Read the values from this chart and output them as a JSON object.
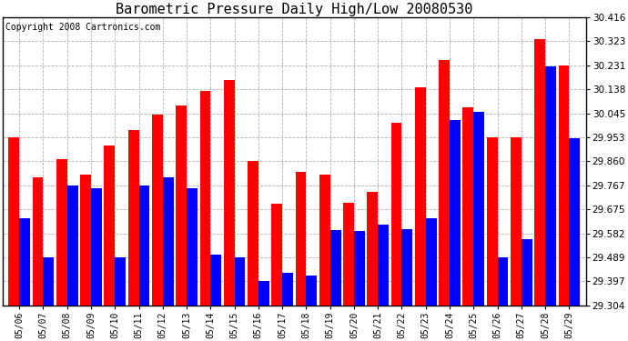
{
  "title": "Barometric Pressure Daily High/Low 20080530",
  "copyright": "Copyright 2008 Cartronics.com",
  "dates": [
    "05/06",
    "05/07",
    "05/08",
    "05/09",
    "05/10",
    "05/11",
    "05/12",
    "05/13",
    "05/14",
    "05/15",
    "05/16",
    "05/17",
    "05/18",
    "05/19",
    "05/20",
    "05/21",
    "05/22",
    "05/23",
    "05/24",
    "05/25",
    "05/26",
    "05/27",
    "05/28",
    "05/29"
  ],
  "highs": [
    29.953,
    29.8,
    29.87,
    29.81,
    29.92,
    29.98,
    30.04,
    30.075,
    30.13,
    30.175,
    29.86,
    29.695,
    29.82,
    29.81,
    29.7,
    29.743,
    30.01,
    30.145,
    30.25,
    30.07,
    29.953,
    29.953,
    30.33,
    30.23
  ],
  "lows": [
    29.64,
    29.49,
    29.767,
    29.755,
    29.49,
    29.767,
    29.8,
    29.757,
    29.5,
    29.49,
    29.397,
    29.43,
    29.42,
    29.595,
    29.59,
    29.615,
    29.597,
    29.64,
    30.02,
    30.05,
    29.49,
    29.56,
    30.225,
    29.95
  ],
  "ylim_min": 29.304,
  "ylim_max": 30.416,
  "yticks": [
    29.304,
    29.397,
    29.489,
    29.582,
    29.675,
    29.767,
    29.86,
    29.953,
    30.045,
    30.138,
    30.231,
    30.323,
    30.416
  ],
  "high_color": "#ff0000",
  "low_color": "#0000ff",
  "bg_color": "#ffffff",
  "grid_color": "#b0b0b0",
  "title_fontsize": 11,
  "copyright_fontsize": 7
}
